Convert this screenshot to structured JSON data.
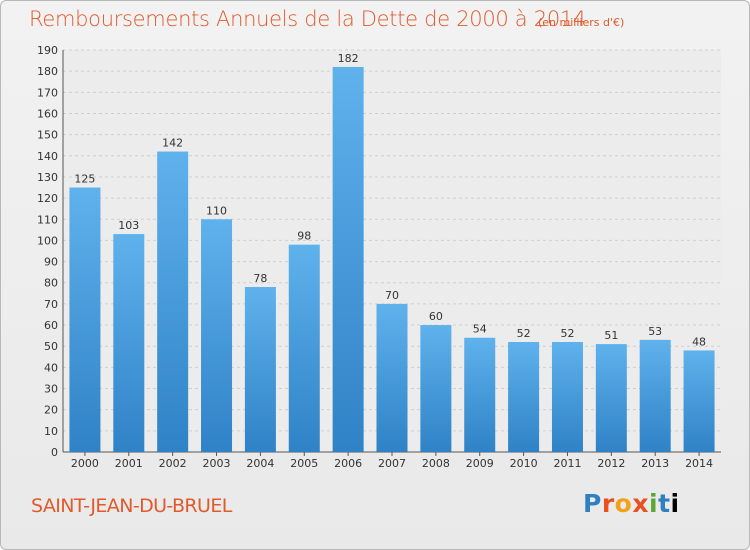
{
  "chart_data": {
    "type": "bar",
    "title": "Remboursements Annuels de la Dette de 2000 à 2014",
    "unit_note": "(en milliers d'€)",
    "categories": [
      "2000",
      "2001",
      "2002",
      "2003",
      "2004",
      "2005",
      "2006",
      "2007",
      "2008",
      "2009",
      "2010",
      "2011",
      "2012",
      "2013",
      "2014"
    ],
    "values": [
      125,
      103,
      142,
      110,
      78,
      98,
      182,
      70,
      60,
      54,
      52,
      52,
      51,
      53,
      48
    ],
    "ylim": [
      0,
      190
    ],
    "ytick_step": 10,
    "grid": true,
    "bar_color": "#4a9fe0"
  },
  "footer": {
    "city": "SAINT-JEAN-DU-BRUEL",
    "logo": "Proxiti"
  }
}
